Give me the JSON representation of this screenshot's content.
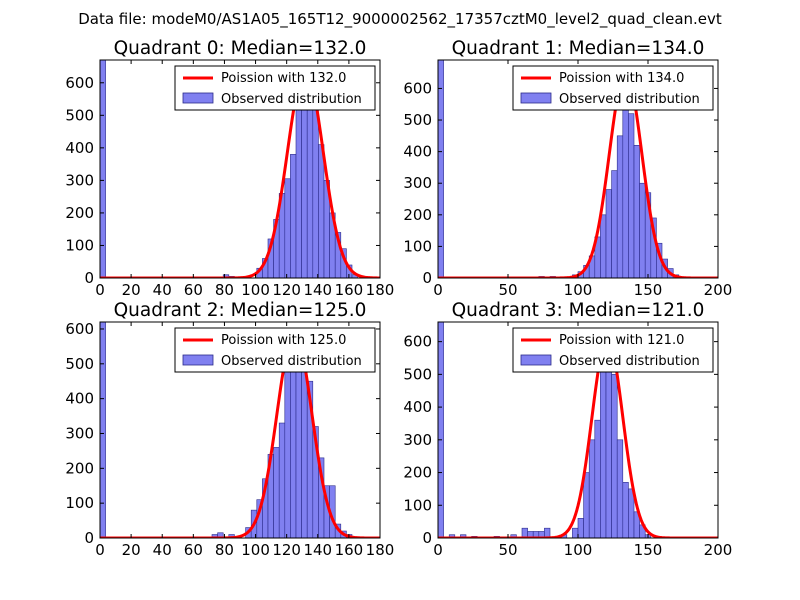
{
  "suptitle": "Data file: modeM0/AS1A05_165T12_9000002562_17357cztM0_level2_quad_clean.evt",
  "colors": {
    "bar_fill": "#8080f0",
    "bar_edge": "#2a2a8a",
    "poisson_line": "#ff0000",
    "axes": "#000000"
  },
  "chart_data": [
    {
      "type": "bar",
      "title": "Quadrant 0: Median=132.0",
      "xlim": [
        0,
        180
      ],
      "ylim": [
        0,
        670
      ],
      "xticks": [
        0,
        20,
        40,
        60,
        80,
        100,
        120,
        140,
        160,
        180
      ],
      "yticks": [
        0,
        100,
        200,
        300,
        400,
        500,
        600
      ],
      "legend": {
        "placement": "top-right",
        "line_label": "Poission with 132.0",
        "bar_label": "Observed distribution"
      },
      "bar_width": 3.6,
      "bars": [
        [
          0,
          670
        ],
        [
          79.2,
          10
        ],
        [
          82.8,
          5
        ],
        [
          100.8,
          30
        ],
        [
          104.4,
          60
        ],
        [
          108,
          120
        ],
        [
          111.6,
          180
        ],
        [
          115.2,
          260
        ],
        [
          118.8,
          305
        ],
        [
          122.4,
          380
        ],
        [
          126,
          640
        ],
        [
          129.6,
          640
        ],
        [
          133.2,
          570
        ],
        [
          136.8,
          620
        ],
        [
          140.4,
          410
        ],
        [
          144,
          300
        ],
        [
          147.6,
          200
        ],
        [
          151.2,
          140
        ],
        [
          154.8,
          90
        ],
        [
          158.4,
          40
        ],
        [
          162,
          10
        ]
      ],
      "poisson": {
        "mean": 132.0,
        "peak": 640,
        "width": 11.5
      }
    },
    {
      "type": "bar",
      "title": "Quadrant 1: Median=134.0",
      "xlim": [
        0,
        200
      ],
      "ylim": [
        0,
        690
      ],
      "xticks": [
        0,
        50,
        100,
        150,
        200
      ],
      "yticks": [
        0,
        100,
        200,
        300,
        400,
        500,
        600
      ],
      "legend": {
        "placement": "top-right",
        "line_label": "Poission with 134.0",
        "bar_label": "Observed distribution"
      },
      "bar_width": 4,
      "bars": [
        [
          0,
          690
        ],
        [
          72,
          5
        ],
        [
          80,
          5
        ],
        [
          96,
          10
        ],
        [
          100,
          20
        ],
        [
          104,
          40
        ],
        [
          108,
          70
        ],
        [
          112,
          130
        ],
        [
          116,
          200
        ],
        [
          120,
          280
        ],
        [
          124,
          340
        ],
        [
          128,
          450
        ],
        [
          132,
          620
        ],
        [
          136,
          520
        ],
        [
          140,
          420
        ],
        [
          144,
          300
        ],
        [
          148,
          270
        ],
        [
          152,
          190
        ],
        [
          156,
          110
        ],
        [
          160,
          60
        ],
        [
          164,
          30
        ],
        [
          168,
          10
        ]
      ],
      "poisson": {
        "mean": 134.0,
        "peak": 650,
        "width": 11.6
      }
    },
    {
      "type": "bar",
      "title": "Quadrant 2: Median=125.0",
      "xlim": [
        0,
        180
      ],
      "ylim": [
        0,
        620
      ],
      "xticks": [
        0,
        20,
        40,
        60,
        80,
        100,
        120,
        140,
        160,
        180
      ],
      "yticks": [
        0,
        100,
        200,
        300,
        400,
        500,
        600
      ],
      "legend": {
        "placement": "top-right",
        "line_label": "Poission with 125.0",
        "bar_label": "Observed distribution"
      },
      "bar_width": 3.6,
      "bars": [
        [
          0,
          620
        ],
        [
          72,
          10
        ],
        [
          75.6,
          15
        ],
        [
          82.8,
          10
        ],
        [
          93.6,
          30
        ],
        [
          97.2,
          80
        ],
        [
          100.8,
          110
        ],
        [
          104.4,
          170
        ],
        [
          108,
          240
        ],
        [
          111.6,
          260
        ],
        [
          115.2,
          330
        ],
        [
          118.8,
          480
        ],
        [
          122.4,
          560
        ],
        [
          126,
          520
        ],
        [
          129.6,
          490
        ],
        [
          133.2,
          450
        ],
        [
          136.8,
          320
        ],
        [
          140.4,
          230
        ],
        [
          144,
          150
        ],
        [
          147.6,
          150
        ],
        [
          151.2,
          40
        ],
        [
          154.8,
          20
        ],
        [
          158.4,
          10
        ]
      ],
      "poisson": {
        "mean": 125.0,
        "peak": 590,
        "width": 11.2
      }
    },
    {
      "type": "bar",
      "title": "Quadrant 3: Median=121.0",
      "xlim": [
        0,
        200
      ],
      "ylim": [
        0,
        660
      ],
      "xticks": [
        0,
        50,
        100,
        150,
        200
      ],
      "yticks": [
        0,
        100,
        200,
        300,
        400,
        500,
        600
      ],
      "legend": {
        "placement": "top-right",
        "line_label": "Poission with 121.0",
        "bar_label": "Observed distribution"
      },
      "bar_width": 4,
      "bars": [
        [
          0,
          660
        ],
        [
          8,
          10
        ],
        [
          16,
          10
        ],
        [
          24,
          5
        ],
        [
          40,
          5
        ],
        [
          52,
          10
        ],
        [
          60,
          30
        ],
        [
          64,
          20
        ],
        [
          68,
          20
        ],
        [
          72,
          20
        ],
        [
          76,
          30
        ],
        [
          88,
          10
        ],
        [
          96,
          30
        ],
        [
          100,
          60
        ],
        [
          104,
          200
        ],
        [
          108,
          300
        ],
        [
          112,
          360
        ],
        [
          116,
          520
        ],
        [
          120,
          570
        ],
        [
          124,
          500
        ],
        [
          128,
          300
        ],
        [
          132,
          170
        ],
        [
          136,
          150
        ],
        [
          140,
          80
        ],
        [
          144,
          40
        ],
        [
          148,
          10
        ]
      ],
      "poisson": {
        "mean": 121.0,
        "peak": 610,
        "width": 11.0
      }
    }
  ]
}
